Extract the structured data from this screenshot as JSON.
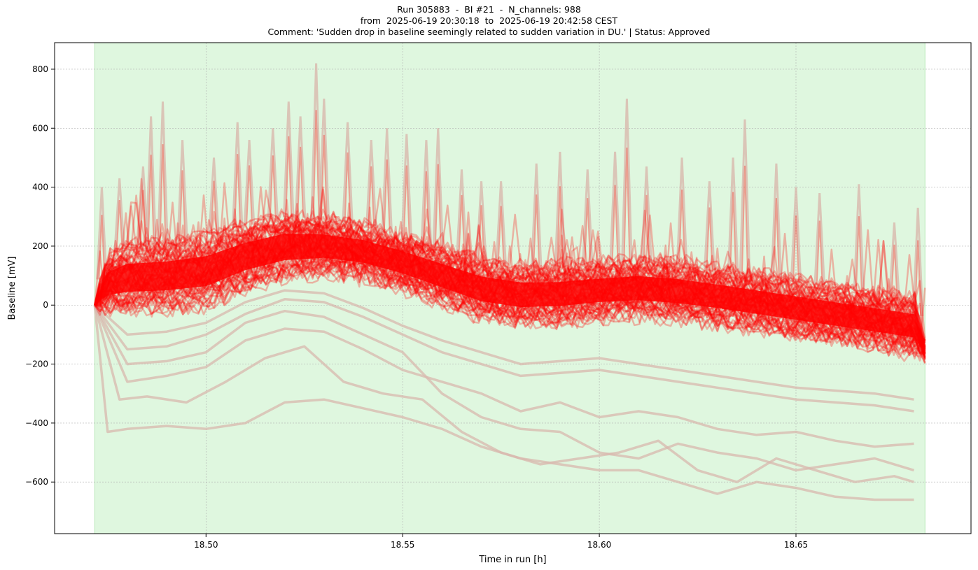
{
  "chart_data": {
    "type": "line",
    "title_lines": [
      "Run 305883  -  BI #21  -  N_channels: 988",
      "from  2025-06-19 20:30:18  to  2025-06-19 20:42:58 CEST",
      "Comment: 'Sudden drop in baseline seemingly related to sudden variation in DU.' | Status: Approved"
    ],
    "xlabel": "Time in run [h]",
    "ylabel": "Baseline [mV]",
    "xlim": [
      18.4615,
      18.6945
    ],
    "ylim": [
      -775,
      890
    ],
    "xticks": [
      18.5,
      18.55,
      18.6,
      18.65
    ],
    "xtick_labels": [
      "18.50",
      "18.55",
      "18.60",
      "18.65"
    ],
    "yticks": [
      -600,
      -400,
      -200,
      0,
      200,
      400,
      600,
      800
    ],
    "ytick_labels": [
      "−600",
      "−400",
      "−200",
      "0",
      "200",
      "400",
      "600",
      "800"
    ],
    "grid": true,
    "highlight_span": {
      "x_start": 18.4717,
      "x_end": 18.6828,
      "color": "#dff7df"
    },
    "series_color": "#ff0000",
    "faded_series_color": "#d8b8ad",
    "baseline_band": {
      "x": [
        18.4717,
        18.475,
        18.48,
        18.49,
        18.5,
        18.51,
        18.52,
        18.53,
        18.54,
        18.55,
        18.56,
        18.57,
        18.58,
        18.59,
        18.6,
        18.61,
        18.62,
        18.63,
        18.64,
        18.65,
        18.66,
        18.67,
        18.68,
        18.6828
      ],
      "lower": [
        0,
        -15,
        -15,
        -12,
        0,
        60,
        95,
        110,
        95,
        60,
        10,
        -40,
        -60,
        -55,
        -40,
        -35,
        -45,
        -60,
        -80,
        -100,
        -120,
        -140,
        -160,
        -170
      ],
      "upper": [
        0,
        160,
        200,
        210,
        230,
        270,
        300,
        290,
        270,
        230,
        190,
        150,
        130,
        130,
        140,
        150,
        140,
        120,
        100,
        80,
        60,
        40,
        20,
        -140
      ]
    },
    "spikes": [
      {
        "x": 18.4735,
        "y": 400
      },
      {
        "x": 18.478,
        "y": 430
      },
      {
        "x": 18.484,
        "y": 470
      },
      {
        "x": 18.486,
        "y": 640
      },
      {
        "x": 18.489,
        "y": 690
      },
      {
        "x": 18.494,
        "y": 560
      },
      {
        "x": 18.502,
        "y": 500
      },
      {
        "x": 18.508,
        "y": 620
      },
      {
        "x": 18.511,
        "y": 560
      },
      {
        "x": 18.517,
        "y": 600
      },
      {
        "x": 18.521,
        "y": 690
      },
      {
        "x": 18.524,
        "y": 640
      },
      {
        "x": 18.528,
        "y": 820
      },
      {
        "x": 18.53,
        "y": 700
      },
      {
        "x": 18.536,
        "y": 620
      },
      {
        "x": 18.542,
        "y": 560
      },
      {
        "x": 18.546,
        "y": 600
      },
      {
        "x": 18.551,
        "y": 580
      },
      {
        "x": 18.556,
        "y": 560
      },
      {
        "x": 18.559,
        "y": 600
      },
      {
        "x": 18.565,
        "y": 460
      },
      {
        "x": 18.57,
        "y": 420
      },
      {
        "x": 18.575,
        "y": 420
      },
      {
        "x": 18.584,
        "y": 480
      },
      {
        "x": 18.59,
        "y": 520
      },
      {
        "x": 18.597,
        "y": 460
      },
      {
        "x": 18.604,
        "y": 520
      },
      {
        "x": 18.607,
        "y": 700
      },
      {
        "x": 18.612,
        "y": 470
      },
      {
        "x": 18.621,
        "y": 500
      },
      {
        "x": 18.628,
        "y": 420
      },
      {
        "x": 18.634,
        "y": 500
      },
      {
        "x": 18.637,
        "y": 630
      },
      {
        "x": 18.645,
        "y": 480
      },
      {
        "x": 18.65,
        "y": 400
      },
      {
        "x": 18.656,
        "y": 380
      },
      {
        "x": 18.666,
        "y": 410
      },
      {
        "x": 18.675,
        "y": 280
      },
      {
        "x": 18.681,
        "y": 330
      }
    ],
    "outlier_series": [
      {
        "x": [
          18.4717,
          18.475,
          18.48,
          18.49,
          18.5,
          18.51,
          18.52,
          18.53,
          18.54,
          18.55,
          18.56,
          18.57,
          18.58,
          18.59,
          18.6,
          18.61,
          18.62,
          18.63,
          18.64,
          18.65,
          18.66,
          18.67,
          18.68
        ],
        "y": [
          0,
          -430,
          -420,
          -410,
          -420,
          -400,
          -330,
          -320,
          -350,
          -380,
          -420,
          -480,
          -520,
          -540,
          -560,
          -560,
          -600,
          -640,
          -600,
          -620,
          -650,
          -660,
          -660
        ]
      },
      {
        "x": [
          18.4717,
          18.478,
          18.485,
          18.495,
          18.505,
          18.515,
          18.525,
          18.535,
          18.545,
          18.555,
          18.565,
          18.575,
          18.585,
          18.595,
          18.605,
          18.615,
          18.625,
          18.635,
          18.645,
          18.655,
          18.665,
          18.675,
          18.68
        ],
        "y": [
          0,
          -320,
          -310,
          -330,
          -260,
          -180,
          -140,
          -260,
          -300,
          -320,
          -430,
          -500,
          -540,
          -520,
          -500,
          -460,
          -560,
          -600,
          -520,
          -560,
          -600,
          -580,
          -600
        ]
      },
      {
        "x": [
          18.4717,
          18.48,
          18.49,
          18.5,
          18.51,
          18.52,
          18.53,
          18.54,
          18.55,
          18.56,
          18.57,
          18.58,
          18.59,
          18.6,
          18.61,
          18.62,
          18.63,
          18.64,
          18.65,
          18.66,
          18.67,
          18.68
        ],
        "y": [
          0,
          -200,
          -190,
          -160,
          -60,
          -20,
          -40,
          -100,
          -160,
          -300,
          -380,
          -420,
          -430,
          -500,
          -520,
          -470,
          -500,
          -520,
          -560,
          -540,
          -520,
          -560
        ]
      },
      {
        "x": [
          18.4717,
          18.48,
          18.49,
          18.5,
          18.51,
          18.52,
          18.53,
          18.54,
          18.55,
          18.56,
          18.57,
          18.58,
          18.59,
          18.6,
          18.61,
          18.62,
          18.63,
          18.64,
          18.65,
          18.66,
          18.67,
          18.68
        ],
        "y": [
          0,
          -260,
          -240,
          -210,
          -120,
          -80,
          -90,
          -150,
          -220,
          -260,
          -300,
          -360,
          -330,
          -380,
          -360,
          -380,
          -420,
          -440,
          -430,
          -460,
          -480,
          -470
        ]
      },
      {
        "x": [
          18.4717,
          18.48,
          18.49,
          18.5,
          18.51,
          18.52,
          18.53,
          18.54,
          18.55,
          18.56,
          18.57,
          18.58,
          18.59,
          18.6,
          18.61,
          18.62,
          18.63,
          18.64,
          18.65,
          18.66,
          18.67,
          18.68
        ],
        "y": [
          0,
          -150,
          -140,
          -100,
          -30,
          20,
          10,
          -40,
          -100,
          -160,
          -200,
          -240,
          -230,
          -220,
          -240,
          -260,
          -280,
          -300,
          -320,
          -330,
          -340,
          -360
        ]
      },
      {
        "x": [
          18.4717,
          18.48,
          18.49,
          18.5,
          18.51,
          18.52,
          18.53,
          18.54,
          18.55,
          18.56,
          18.57,
          18.58,
          18.59,
          18.6,
          18.61,
          18.62,
          18.63,
          18.64,
          18.65,
          18.66,
          18.67,
          18.68
        ],
        "y": [
          0,
          -100,
          -90,
          -60,
          10,
          50,
          40,
          -10,
          -70,
          -120,
          -160,
          -200,
          -190,
          -180,
          -200,
          -220,
          -240,
          -260,
          -280,
          -290,
          -300,
          -320
        ]
      }
    ]
  }
}
